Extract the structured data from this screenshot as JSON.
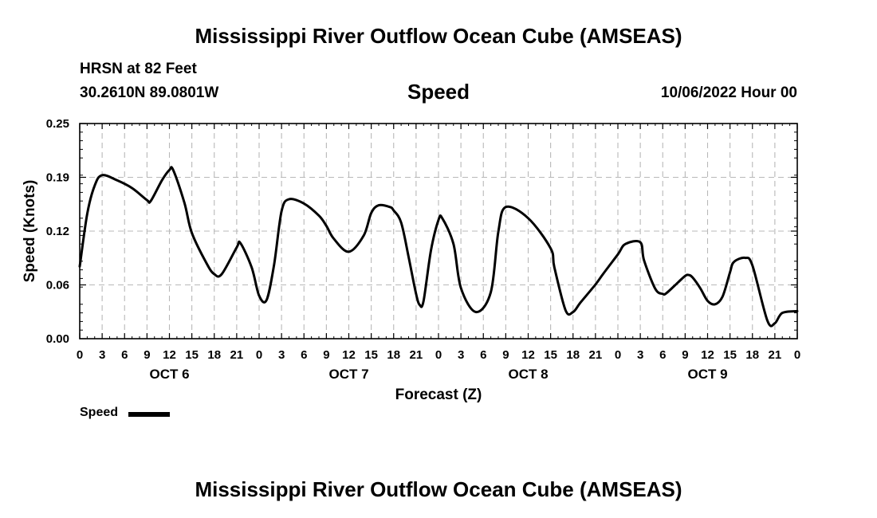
{
  "header": {
    "title": "Mississippi River Outflow Ocean Cube (AMSEAS)",
    "station": "HRSN at 82 Feet",
    "coordinates": "30.2610N  89.0801W",
    "variable": "Speed",
    "datetime": "10/06/2022 Hour 00"
  },
  "legend": {
    "label": "Speed",
    "color": "#000000"
  },
  "footer": {
    "title": "Mississippi River Outflow Ocean Cube (AMSEAS)"
  },
  "chart_data": {
    "type": "line",
    "title": "Speed",
    "xlabel": "Forecast (Z)",
    "ylabel": "Speed (Knots)",
    "ylim": [
      0,
      0.25
    ],
    "xlim": [
      0,
      96
    ],
    "x_unit": "hours from 10/06/2022 00Z",
    "yticks": [
      "0.00",
      "0.06",
      "0.12",
      "0.19",
      "0.25"
    ],
    "ytick_values": [
      0,
      0.0625,
      0.125,
      0.1875,
      0.25
    ],
    "xtick_labels": [
      "0",
      "3",
      "6",
      "9",
      "12",
      "15",
      "18",
      "21",
      "0",
      "3",
      "6",
      "9",
      "12",
      "15",
      "18",
      "21",
      "0",
      "3",
      "6",
      "9",
      "12",
      "15",
      "18",
      "21",
      "0",
      "3",
      "6",
      "9",
      "12",
      "15",
      "18",
      "21",
      "0"
    ],
    "day_labels": [
      "OCT 6",
      "OCT 7",
      "OCT 8",
      "OCT 9"
    ],
    "grid": true,
    "legend_position": "bottom-left",
    "series": [
      {
        "name": "Speed",
        "color": "#000000",
        "x": [
          0,
          1,
          2,
          3,
          5,
          7,
          9,
          9.5,
          11,
          12,
          12.5,
          14,
          15,
          17,
          18,
          19,
          21,
          21.5,
          23,
          24,
          25,
          26,
          27,
          28,
          30,
          32,
          33,
          34,
          36,
          38,
          39,
          40,
          41.5,
          42,
          43,
          44,
          45,
          45.5,
          46,
          47,
          48,
          48.5,
          50,
          51,
          53,
          55,
          56,
          57,
          60,
          63,
          63.5,
          65,
          66,
          67,
          69,
          70,
          72,
          73,
          75,
          75.5,
          77,
          78,
          78.5,
          80,
          81,
          81.5,
          82,
          83,
          84,
          85,
          86,
          87,
          87.5,
          89,
          90,
          92,
          93,
          94,
          96
        ],
        "y": [
          0.084,
          0.145,
          0.178,
          0.19,
          0.184,
          0.175,
          0.161,
          0.16,
          0.184,
          0.196,
          0.196,
          0.158,
          0.123,
          0.087,
          0.075,
          0.075,
          0.106,
          0.111,
          0.083,
          0.05,
          0.045,
          0.086,
          0.148,
          0.162,
          0.157,
          0.143,
          0.131,
          0.116,
          0.101,
          0.12,
          0.146,
          0.155,
          0.153,
          0.149,
          0.135,
          0.095,
          0.052,
          0.039,
          0.044,
          0.103,
          0.138,
          0.14,
          0.11,
          0.059,
          0.031,
          0.054,
          0.124,
          0.153,
          0.14,
          0.105,
          0.083,
          0.033,
          0.031,
          0.042,
          0.063,
          0.075,
          0.098,
          0.11,
          0.112,
          0.091,
          0.058,
          0.052,
          0.053,
          0.065,
          0.073,
          0.074,
          0.071,
          0.059,
          0.044,
          0.04,
          0.049,
          0.077,
          0.089,
          0.094,
          0.085,
          0.021,
          0.018,
          0.03,
          0.032
        ]
      }
    ]
  }
}
